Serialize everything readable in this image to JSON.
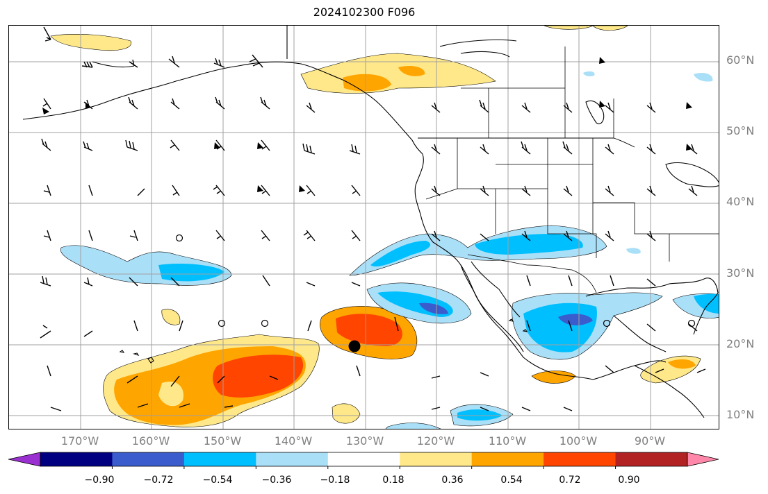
{
  "title": "2024102300 F096",
  "latitude_labels": [
    "60°N",
    "50°N",
    "40°N",
    "30°N",
    "20°N",
    "10°N"
  ],
  "longitude_labels": [
    "170°W",
    "160°W",
    "150°W",
    "140°W",
    "130°W",
    "120°W",
    "110°W",
    "100°W",
    "90°W"
  ],
  "colorbar": {
    "tick_labels": [
      "−0.90",
      "−0.72",
      "−0.54",
      "−0.36",
      "−0.18",
      "0.18",
      "0.36",
      "0.54",
      "0.72",
      "0.90"
    ],
    "colors": [
      "#9b30d0",
      "#000080",
      "#3a5ccc",
      "#00bfff",
      "#aadff8",
      "#ffffff",
      "#ffe88a",
      "#ffa500",
      "#ff4500",
      "#b22222",
      "#ff88aa"
    ]
  },
  "colors": {
    "grid": "#a0a0a0",
    "coast": "#000000",
    "label": "#808080"
  }
}
